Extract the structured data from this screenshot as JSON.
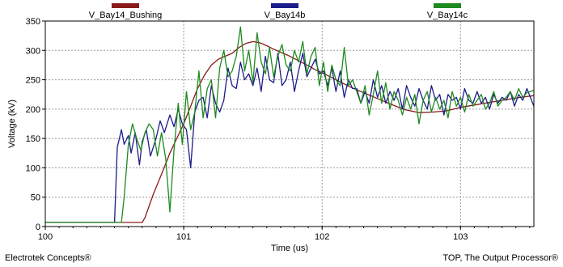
{
  "footer": {
    "left": "Electrotek Concepts®",
    "right": "TOP, The Output Processor®"
  },
  "chart_data": {
    "type": "line",
    "xlabel": "Time (us)",
    "ylabel": "Voltage (kV)",
    "xlim": [
      100,
      103.53
    ],
    "ylim": [
      0,
      350
    ],
    "xticks": [
      100,
      101,
      102,
      103
    ],
    "yticks": [
      0,
      50,
      100,
      150,
      200,
      250,
      300,
      350
    ],
    "grid": true,
    "legend_position": "top",
    "series": [
      {
        "name": "V_Bay14_Bushing",
        "color": "#8b1a1a",
        "x": [
          100,
          100.7,
          100.72,
          100.78,
          100.85,
          100.9,
          100.95,
          101.0,
          101.05,
          101.1,
          101.15,
          101.2,
          101.25,
          101.3,
          101.35,
          101.4,
          101.45,
          101.5,
          101.55,
          101.6,
          101.65,
          101.7,
          101.75,
          101.8,
          101.85,
          101.9,
          101.95,
          102.0,
          102.05,
          102.1,
          102.15,
          102.2,
          102.3,
          102.4,
          102.5,
          102.6,
          102.7,
          102.8,
          102.9,
          103.0,
          103.1,
          103.2,
          103.3,
          103.4,
          103.53
        ],
        "y": [
          7,
          7,
          15,
          55,
          95,
          125,
          150,
          175,
          205,
          235,
          258,
          275,
          285,
          290,
          295,
          305,
          312,
          315,
          313,
          308,
          302,
          297,
          292,
          286,
          280,
          274,
          267,
          262,
          256,
          250,
          244,
          238,
          228,
          218,
          208,
          199,
          194,
          195,
          197,
          203,
          207,
          211,
          215,
          219,
          223
        ]
      },
      {
        "name": "V_Bay14b",
        "color": "#1c1c8a",
        "x": [
          100,
          100.5,
          100.52,
          100.55,
          100.57,
          100.6,
          100.62,
          100.65,
          100.68,
          100.7,
          100.73,
          100.76,
          100.8,
          100.83,
          100.86,
          100.9,
          100.93,
          100.96,
          100.99,
          101.02,
          101.05,
          101.08,
          101.11,
          101.14,
          101.17,
          101.2,
          101.23,
          101.26,
          101.29,
          101.32,
          101.35,
          101.38,
          101.41,
          101.44,
          101.47,
          101.5,
          101.53,
          101.56,
          101.59,
          101.62,
          101.65,
          101.68,
          101.71,
          101.74,
          101.77,
          101.8,
          101.83,
          101.86,
          101.89,
          101.92,
          101.95,
          101.98,
          102.01,
          102.04,
          102.07,
          102.1,
          102.13,
          102.16,
          102.19,
          102.22,
          102.25,
          102.28,
          102.31,
          102.34,
          102.37,
          102.4,
          102.43,
          102.46,
          102.49,
          102.52,
          102.55,
          102.58,
          102.61,
          102.64,
          102.67,
          102.7,
          102.73,
          102.76,
          102.79,
          102.82,
          102.85,
          102.88,
          102.91,
          102.94,
          102.97,
          103.0,
          103.03,
          103.06,
          103.09,
          103.12,
          103.15,
          103.18,
          103.21,
          103.24,
          103.27,
          103.3,
          103.33,
          103.36,
          103.39,
          103.42,
          103.45,
          103.48,
          103.53
        ],
        "y": [
          7,
          7,
          135,
          165,
          140,
          155,
          125,
          160,
          105,
          145,
          165,
          120,
          150,
          180,
          160,
          190,
          170,
          200,
          175,
          165,
          100,
          195,
          215,
          220,
          185,
          240,
          210,
          195,
          215,
          270,
          240,
          235,
          280,
          250,
          260,
          240,
          270,
          230,
          290,
          250,
          245,
          295,
          240,
          250,
          280,
          230,
          265,
          295,
          255,
          270,
          285,
          260,
          265,
          240,
          270,
          230,
          265,
          220,
          250,
          235,
          235,
          210,
          230,
          210,
          250,
          220,
          240,
          210,
          230,
          215,
          235,
          200,
          240,
          220,
          205,
          235,
          215,
          200,
          240,
          215,
          225,
          190,
          225,
          215,
          220,
          200,
          235,
          215,
          210,
          230,
          210,
          220,
          200,
          225,
          210,
          220,
          215,
          230,
          205,
          225,
          215,
          235,
          205
        ]
      },
      {
        "name": "V_Bay14c",
        "color": "#1e8a1e",
        "x": [
          100,
          100.55,
          100.57,
          100.6,
          100.63,
          100.66,
          100.69,
          100.72,
          100.75,
          100.78,
          100.81,
          100.84,
          100.87,
          100.9,
          100.93,
          100.96,
          100.99,
          101.02,
          101.05,
          101.08,
          101.11,
          101.14,
          101.17,
          101.2,
          101.23,
          101.26,
          101.29,
          101.32,
          101.35,
          101.38,
          101.41,
          101.44,
          101.47,
          101.5,
          101.53,
          101.56,
          101.59,
          101.62,
          101.65,
          101.68,
          101.71,
          101.74,
          101.77,
          101.8,
          101.83,
          101.86,
          101.89,
          101.92,
          101.95,
          101.98,
          102.01,
          102.04,
          102.07,
          102.1,
          102.13,
          102.16,
          102.19,
          102.22,
          102.25,
          102.28,
          102.31,
          102.34,
          102.37,
          102.4,
          102.43,
          102.46,
          102.49,
          102.52,
          102.55,
          102.58,
          102.61,
          102.64,
          102.67,
          102.7,
          102.73,
          102.76,
          102.79,
          102.82,
          102.85,
          102.88,
          102.91,
          102.94,
          102.97,
          103.0,
          103.03,
          103.06,
          103.09,
          103.12,
          103.15,
          103.18,
          103.21,
          103.24,
          103.27,
          103.3,
          103.33,
          103.36,
          103.39,
          103.42,
          103.45,
          103.48,
          103.53
        ],
        "y": [
          7,
          7,
          50,
          140,
          175,
          150,
          130,
          160,
          175,
          165,
          120,
          160,
          115,
          25,
          130,
          210,
          140,
          230,
          165,
          195,
          265,
          185,
          235,
          250,
          185,
          270,
          300,
          255,
          265,
          290,
          340,
          265,
          300,
          245,
          330,
          280,
          260,
          305,
          255,
          290,
          310,
          275,
          265,
          300,
          280,
          315,
          260,
          290,
          305,
          240,
          280,
          230,
          275,
          250,
          240,
          305,
          240,
          250,
          230,
          210,
          240,
          190,
          225,
          265,
          210,
          245,
          200,
          230,
          215,
          190,
          220,
          200,
          225,
          175,
          215,
          230,
          195,
          220,
          200,
          215,
          185,
          230,
          205,
          220,
          195,
          225,
          205,
          215,
          225,
          200,
          210,
          230,
          205,
          215,
          220,
          230,
          215,
          235,
          220,
          228,
          232
        ]
      }
    ]
  }
}
